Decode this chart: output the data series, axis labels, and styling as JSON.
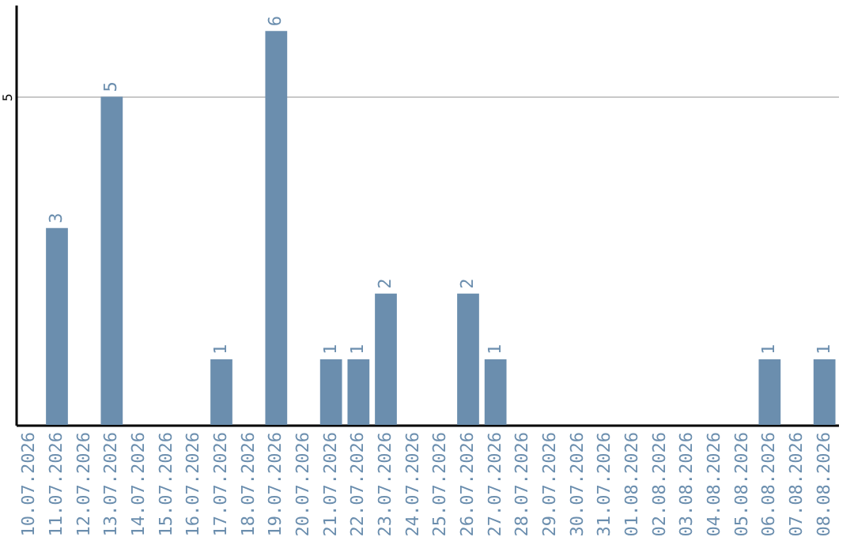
{
  "chart_data": {
    "type": "bar",
    "categories": [
      "10.07.2026",
      "11.07.2026",
      "12.07.2026",
      "13.07.2026",
      "14.07.2026",
      "15.07.2026",
      "16.07.2026",
      "17.07.2026",
      "18.07.2026",
      "19.07.2026",
      "20.07.2026",
      "21.07.2026",
      "22.07.2026",
      "23.07.2026",
      "24.07.2026",
      "25.07.2026",
      "26.07.2026",
      "27.07.2026",
      "28.07.2026",
      "29.07.2026",
      "30.07.2026",
      "31.07.2026",
      "01.08.2026",
      "02.08.2026",
      "03.08.2026",
      "04.08.2026",
      "05.08.2026",
      "06.08.2026",
      "07.08.2026",
      "08.08.2026"
    ],
    "values": [
      0,
      3,
      0,
      5,
      0,
      0,
      0,
      1,
      0,
      6,
      0,
      1,
      1,
      2,
      0,
      0,
      2,
      1,
      0,
      0,
      0,
      0,
      0,
      0,
      0,
      0,
      0,
      1,
      0,
      1
    ],
    "value_labels": [
      null,
      "3",
      null,
      "5",
      null,
      null,
      null,
      "1",
      null,
      "6",
      null,
      "1",
      "1",
      "2",
      null,
      null,
      "2",
      "1",
      null,
      null,
      null,
      null,
      null,
      null,
      null,
      null,
      null,
      "1",
      null,
      "1"
    ],
    "color": "#6b8eae",
    "ylim": [
      0,
      6.4
    ],
    "yticks": [
      5
    ],
    "grid": "y"
  }
}
